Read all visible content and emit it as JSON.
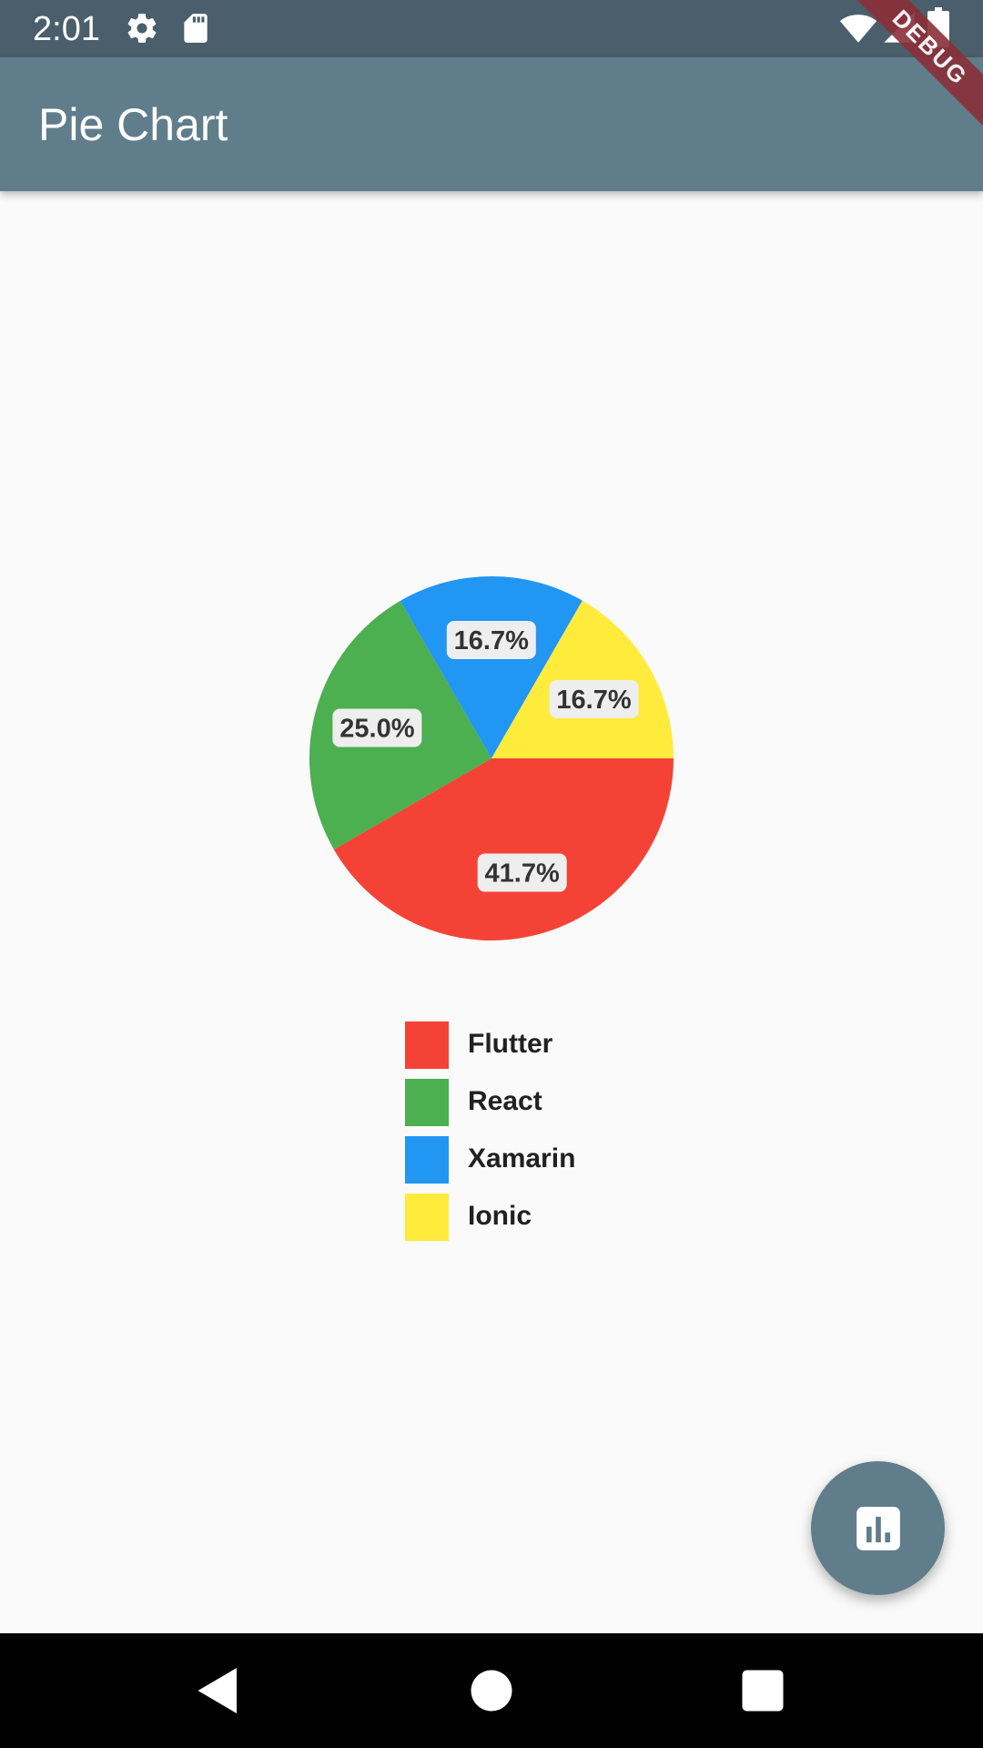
{
  "status_bar": {
    "time": "2:01",
    "icons": [
      "gear-icon",
      "sd-card-icon",
      "wifi-icon",
      "signal-icon",
      "battery-icon"
    ]
  },
  "app_bar": {
    "title": "Pie Chart"
  },
  "debug_banner": "DEBUG",
  "chart_data": {
    "type": "pie",
    "title": "",
    "categories": [
      "Flutter",
      "React",
      "Xamarin",
      "Ionic"
    ],
    "values": [
      41.7,
      25.0,
      16.7,
      16.7
    ],
    "labels": [
      "41.7%",
      "25.0%",
      "16.7%",
      "16.7%"
    ],
    "colors": [
      "#f44336",
      "#4caf50",
      "#2196f3",
      "#ffeb3b"
    ],
    "legend_position": "bottom"
  },
  "fab": {
    "icon": "bar-chart-icon"
  },
  "nav_bar": {
    "buttons": [
      "back-icon",
      "home-icon",
      "recents-icon"
    ]
  }
}
